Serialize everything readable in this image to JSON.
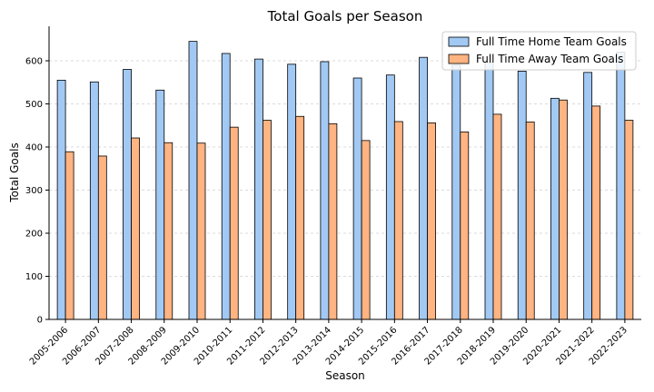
{
  "chart_data": {
    "type": "bar",
    "title": "Total Goals per Season",
    "xlabel": "Season",
    "ylabel": "Total Goals",
    "ylim": [
      0,
      680
    ],
    "yticks": [
      0,
      100,
      200,
      300,
      400,
      500,
      600
    ],
    "grid": "y-dashed",
    "legend_position": "top-right",
    "categories": [
      "2005-2006",
      "2006-2007",
      "2007-2008",
      "2008-2009",
      "2009-2010",
      "2010-2011",
      "2011-2012",
      "2012-2013",
      "2013-2014",
      "2014-2015",
      "2015-2016",
      "2016-2017",
      "2017-2018",
      "2018-2019",
      "2019-2020",
      "2020-2021",
      "2021-2022",
      "2022-2023"
    ],
    "series": [
      {
        "name": "Full Time Home Team Goals",
        "color": "#a1c9f4",
        "values": [
          555,
          551,
          580,
          532,
          645,
          617,
          604,
          592,
          598,
          560,
          567,
          608,
          590,
          596,
          576,
          513,
          573,
          620
        ]
      },
      {
        "name": "Full Time Away Team Goals",
        "color": "#ffb482",
        "values": [
          389,
          379,
          421,
          410,
          409,
          446,
          462,
          471,
          454,
          415,
          459,
          456,
          435,
          476,
          458,
          509,
          495,
          462
        ]
      }
    ]
  }
}
